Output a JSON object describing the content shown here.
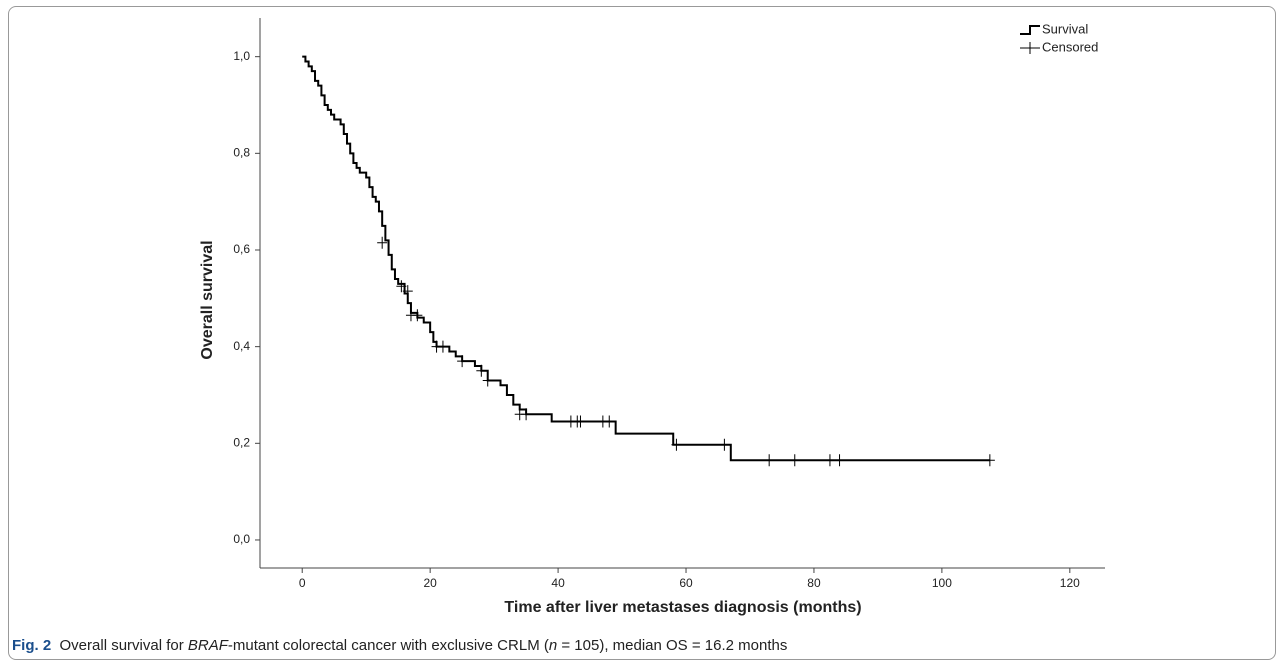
{
  "chart_data": {
    "type": "step",
    "x_label": "Time after liver metastases diagnosis (months)",
    "y_label": "Overall survival",
    "xlim": [
      -6.6,
      125.5
    ],
    "ylim": [
      -0.058,
      1.08
    ],
    "xticks": [
      0,
      20,
      40,
      60,
      80,
      100,
      120
    ],
    "yticks": [
      {
        "value": 0,
        "label": "0,0"
      },
      {
        "value": 0.2,
        "label": "0,2"
      },
      {
        "value": 0.4,
        "label": "0,4"
      },
      {
        "value": 0.6,
        "label": "0,6"
      },
      {
        "value": 0.8,
        "label": "0,8"
      },
      {
        "value": 1,
        "label": "1,0"
      }
    ],
    "legend": "top-right",
    "series": [
      {
        "name": "Survival",
        "color": "#000000",
        "x": [
          0,
          0.5,
          1,
          1.5,
          2,
          2.5,
          3,
          3.5,
          4,
          4.5,
          5,
          6,
          6.5,
          7,
          7.5,
          8,
          8.5,
          9,
          10,
          10.5,
          11,
          11.5,
          12,
          12.5,
          13,
          13.5,
          14,
          14.5,
          15,
          16,
          16.5,
          17,
          18,
          19,
          20,
          20.5,
          21,
          23,
          24,
          25,
          27,
          28,
          29,
          31,
          32,
          33,
          34,
          35,
          39,
          49,
          58,
          67,
          107.5
        ],
        "values": [
          1.0,
          0.99,
          0.98,
          0.97,
          0.95,
          0.94,
          0.92,
          0.9,
          0.89,
          0.88,
          0.87,
          0.86,
          0.84,
          0.82,
          0.8,
          0.78,
          0.77,
          0.76,
          0.75,
          0.73,
          0.71,
          0.7,
          0.68,
          0.65,
          0.62,
          0.59,
          0.56,
          0.54,
          0.53,
          0.51,
          0.49,
          0.47,
          0.46,
          0.45,
          0.43,
          0.41,
          0.4,
          0.39,
          0.38,
          0.37,
          0.36,
          0.35,
          0.33,
          0.32,
          0.3,
          0.28,
          0.27,
          0.26,
          0.245,
          0.22,
          0.197,
          0.165,
          0.165
        ]
      },
      {
        "name": "Censored",
        "color": "#000000",
        "x": [
          12.5,
          15.5,
          16.5,
          17,
          18,
          21,
          22,
          25,
          28,
          29,
          34,
          35,
          42,
          43,
          43.5,
          47,
          48,
          58.5,
          66,
          73,
          77,
          82.5,
          84,
          107.5
        ],
        "values": [
          0.615,
          0.525,
          0.515,
          0.465,
          0.465,
          0.4,
          0.4,
          0.37,
          0.35,
          0.33,
          0.26,
          0.26,
          0.245,
          0.245,
          0.245,
          0.245,
          0.245,
          0.197,
          0.197,
          0.165,
          0.165,
          0.165,
          0.165,
          0.165
        ]
      }
    ]
  },
  "figure": {
    "label": "Fig. 2",
    "caption": [
      "Overall survival for ",
      "BRAF",
      "-mutant colorectal cancer with exclusive CRLM (",
      "n",
      " = 105), median OS = 16.2 months"
    ]
  }
}
